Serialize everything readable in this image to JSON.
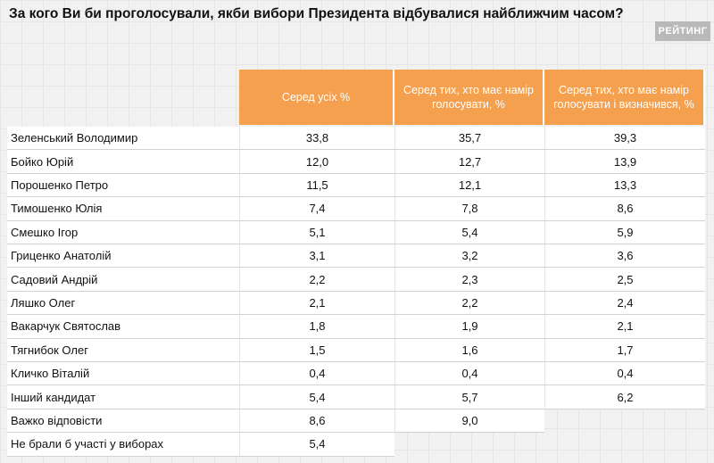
{
  "header": {
    "title": "За кого Ви би проголосували, якби вибори Президента відбувалися найближчим часом?",
    "logo": "РЕЙТИНГ"
  },
  "table": {
    "columns": [
      "Серед усіх %",
      "Серед тих, хто має намір голосувати, %",
      "Серед тих, хто має намір голосувати і визначився, %"
    ],
    "rows": [
      {
        "name": "Зеленський Володимир",
        "values": [
          "33,8",
          "35,7",
          "39,3"
        ]
      },
      {
        "name": "Бойко Юрій",
        "values": [
          "12,0",
          "12,7",
          "13,9"
        ]
      },
      {
        "name": "Порошенко Петро",
        "values": [
          "11,5",
          "12,1",
          "13,3"
        ]
      },
      {
        "name": "Тимошенко Юлія",
        "values": [
          "7,4",
          "7,8",
          "8,6"
        ]
      },
      {
        "name": "Смешко Ігор",
        "values": [
          "5,1",
          "5,4",
          "5,9"
        ]
      },
      {
        "name": "Гриценко Анатолій",
        "values": [
          "3,1",
          "3,2",
          "3,6"
        ]
      },
      {
        "name": "Садовий Андрій",
        "values": [
          "2,2",
          "2,3",
          "2,5"
        ]
      },
      {
        "name": "Ляшко Олег",
        "values": [
          "2,1",
          "2,2",
          "2,4"
        ]
      },
      {
        "name": "Вакарчук Святослав",
        "values": [
          "1,8",
          "1,9",
          "2,1"
        ]
      },
      {
        "name": "Тягнибок Олег",
        "values": [
          "1,5",
          "1,6",
          "1,7"
        ]
      },
      {
        "name": "Кличко Віталій",
        "values": [
          "0,4",
          "0,4",
          "0,4"
        ]
      },
      {
        "name": "Інший кандидат",
        "values": [
          "5,4",
          "5,7",
          "6,2"
        ]
      },
      {
        "name": "Важко відповісти",
        "values": [
          "8,6",
          "9,0"
        ]
      },
      {
        "name": "Не брали б участі у виборах",
        "values": [
          "5,4"
        ]
      }
    ]
  }
}
